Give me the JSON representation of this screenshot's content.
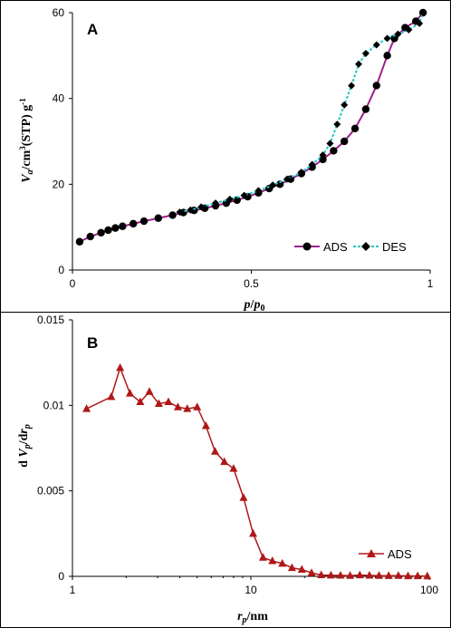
{
  "chart_data": [
    {
      "panel_label": "A",
      "type": "line",
      "xlabel": "p/p0",
      "ylabel": "Va/cm3(STP) g-1",
      "xlim": [
        0,
        1
      ],
      "ylim": [
        0,
        60
      ],
      "xticks": [
        "0",
        "0.5",
        "1"
      ],
      "yticks": [
        "0",
        "20",
        "40",
        "60"
      ],
      "legend_position": "bottom-right",
      "grid": false,
      "series": [
        {
          "name": "ADS",
          "color": "#a0208c",
          "marker": "circle",
          "x": [
            0.02,
            0.05,
            0.08,
            0.1,
            0.12,
            0.14,
            0.17,
            0.2,
            0.24,
            0.28,
            0.31,
            0.34,
            0.37,
            0.4,
            0.43,
            0.46,
            0.49,
            0.52,
            0.55,
            0.58,
            0.61,
            0.64,
            0.67,
            0.7,
            0.73,
            0.76,
            0.79,
            0.82,
            0.85,
            0.88,
            0.9,
            0.93,
            0.96,
            0.98
          ],
          "y": [
            6.6,
            7.8,
            8.7,
            9.3,
            9.8,
            10.2,
            10.8,
            11.4,
            12.1,
            12.8,
            13.4,
            13.9,
            14.4,
            15.0,
            15.6,
            16.3,
            17.1,
            18.0,
            19.0,
            20.0,
            21.2,
            22.5,
            24.0,
            25.8,
            27.8,
            30.0,
            33.0,
            37.5,
            43.0,
            50.0,
            54.0,
            56.5,
            58.0,
            60.0
          ]
        },
        {
          "name": "DES",
          "color": "#20c8c8",
          "marker": "diamond",
          "x": [
            0.3,
            0.33,
            0.36,
            0.4,
            0.44,
            0.48,
            0.52,
            0.56,
            0.6,
            0.64,
            0.67,
            0.7,
            0.72,
            0.74,
            0.76,
            0.78,
            0.8,
            0.82,
            0.85,
            0.88,
            0.91,
            0.94,
            0.97,
            0.98
          ],
          "y": [
            13.5,
            14.0,
            14.7,
            15.6,
            16.5,
            17.4,
            18.5,
            19.8,
            21.2,
            22.8,
            24.6,
            26.8,
            29.5,
            34.0,
            38.5,
            43.0,
            48.0,
            50.5,
            52.5,
            54.0,
            55.0,
            56.0,
            57.5,
            60.0
          ]
        }
      ]
    },
    {
      "panel_label": "B",
      "type": "line",
      "xlabel": "rp/nm",
      "ylabel": "d Vp/d rp",
      "xscale": "log",
      "xlim": [
        1,
        100
      ],
      "ylim": [
        0,
        0.015
      ],
      "xticks": [
        "1",
        "10",
        "100"
      ],
      "yticks": [
        "0",
        "0.005",
        "0.01",
        "0.015"
      ],
      "legend_position": "bottom-right",
      "grid": false,
      "series": [
        {
          "name": "ADS",
          "color": "#b01818",
          "marker": "triangle",
          "x": [
            1.2,
            1.65,
            1.85,
            2.1,
            2.4,
            2.7,
            3.05,
            3.45,
            3.9,
            4.4,
            5.0,
            5.6,
            6.3,
            7.1,
            8.0,
            9.1,
            10.3,
            11.7,
            13.2,
            15.0,
            17.0,
            19.3,
            21.9,
            24.8,
            28.1,
            31.8,
            36.0,
            40.8,
            46.2,
            52.3,
            59.2,
            67.1,
            76.0,
            86.1,
            97.5
          ],
          "y": [
            0.0098,
            0.0105,
            0.0122,
            0.0107,
            0.0102,
            0.0108,
            0.0101,
            0.0102,
            0.0099,
            0.0098,
            0.0099,
            0.0088,
            0.0073,
            0.0067,
            0.0063,
            0.0046,
            0.0025,
            0.0011,
            0.0009,
            0.00075,
            0.0005,
            0.0004,
            0.0002,
            8e-05,
            6e-05,
            5e-05,
            4e-05,
            7e-05,
            5e-05,
            4e-05,
            3e-05,
            4e-05,
            2e-05,
            2e-05,
            1e-05
          ]
        }
      ]
    }
  ]
}
